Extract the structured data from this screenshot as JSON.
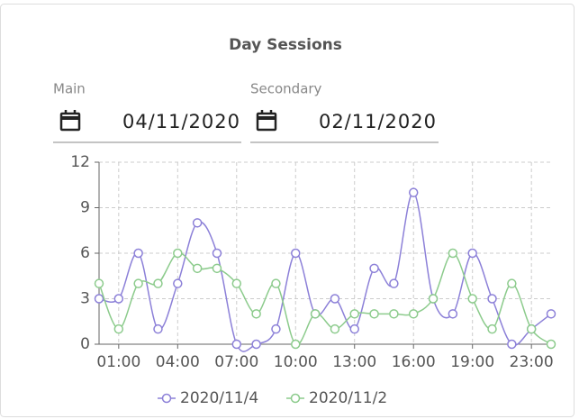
{
  "header": {
    "title": "Day Sessions"
  },
  "inputs": [
    {
      "label": "Main",
      "value": "04/11/2020"
    },
    {
      "label": "Secondary",
      "value": "02/11/2020"
    }
  ],
  "chart_data": {
    "type": "line",
    "categories": [
      null,
      "01:00",
      null,
      null,
      "04:00",
      null,
      null,
      "07:00",
      null,
      null,
      "10:00",
      null,
      null,
      "13:00",
      null,
      null,
      "16:00",
      null,
      null,
      "19:00",
      null,
      null,
      "23:00",
      null
    ],
    "series": [
      {
        "name": "2020/11/4",
        "color": "#8c80d8",
        "values": [
          3,
          3,
          6,
          1,
          4,
          8,
          6,
          0,
          0,
          1,
          6,
          2,
          3,
          1,
          5,
          4,
          10,
          3,
          2,
          6,
          3,
          0,
          1,
          2
        ]
      },
      {
        "name": "2020/11/2",
        "color": "#8ccb8c",
        "values": [
          4,
          1,
          4,
          4,
          6,
          5,
          5,
          4,
          2,
          4,
          0,
          2,
          1,
          2,
          2,
          2,
          2,
          3,
          6,
          3,
          1,
          4,
          1,
          0
        ]
      }
    ],
    "ylim": [
      0,
      12
    ],
    "yticks": [
      0,
      3,
      6,
      9,
      12
    ],
    "grid": true,
    "smooth": true
  }
}
